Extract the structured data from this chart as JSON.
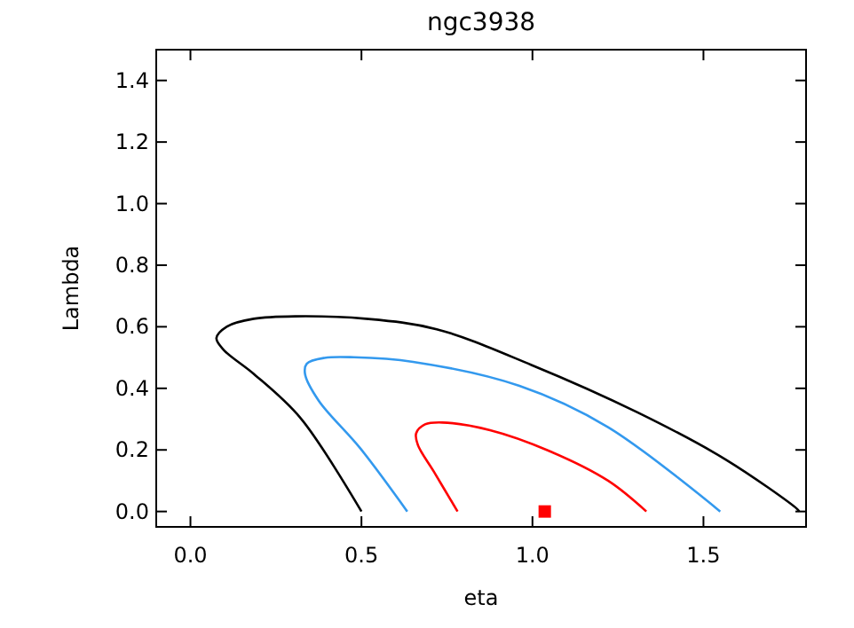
{
  "chart_data": {
    "type": "line",
    "title": "ngc3938",
    "xlabel": "eta",
    "ylabel": "Lambda",
    "xlim": [
      -0.1,
      1.8
    ],
    "ylim": [
      -0.05,
      1.5
    ],
    "xticks": [
      {
        "value": 0,
        "label": "0.0"
      },
      0.5,
      {
        "value": 1,
        "label": "1.0"
      },
      1.5
    ],
    "yticks": [
      {
        "value": 0,
        "label": "0.0"
      },
      0.2,
      0.4,
      0.6,
      0.8,
      {
        "value": 1,
        "label": "1.0"
      },
      1.2,
      1.4
    ],
    "grid": false,
    "line_style": "solid",
    "series": [
      {
        "color": "#000000",
        "x": [
          0.5,
          0.323,
          0.185,
          0.098,
          0.076,
          0.107,
          0.185,
          0.306,
          0.513,
          0.72,
          0.997,
          1.307,
          1.566,
          1.774,
          1.78
        ],
        "values": [
          0,
          0.302,
          0.447,
          0.524,
          0.563,
          0.601,
          0.626,
          0.634,
          0.626,
          0.592,
          0.476,
          0.322,
          0.168,
          0.008,
          0
        ]
      },
      {
        "color": "#3399ee",
        "x": [
          0.634,
          0.496,
          0.375,
          0.335,
          0.34,
          0.392,
          0.478,
          0.651,
          0.962,
          1.221,
          1.549
        ],
        "values": [
          0,
          0.206,
          0.36,
          0.447,
          0.48,
          0.499,
          0.501,
          0.486,
          0.408,
          0.274,
          0
        ]
      },
      {
        "color": "#ff0000",
        "x": [
          0.781,
          0.712,
          0.665,
          0.66,
          0.686,
          0.737,
          0.876,
          1.048,
          1.221,
          1.333
        ],
        "values": [
          0,
          0.129,
          0.216,
          0.254,
          0.283,
          0.289,
          0.264,
          0.197,
          0.1,
          0
        ]
      },
      {
        "type": "scatter",
        "marker": "square",
        "color": "#ff0000",
        "x": [
          1.036
        ],
        "values": [
          0
        ]
      }
    ]
  }
}
